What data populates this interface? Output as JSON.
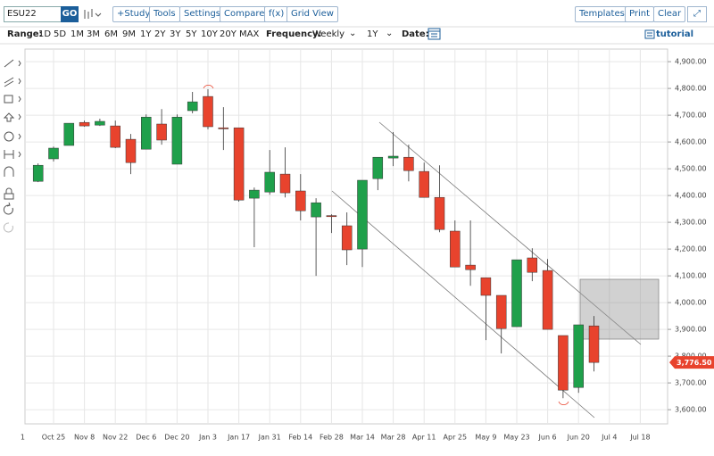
{
  "toolbar": {
    "symbol": "ESU22",
    "go": "GO",
    "buttons_left": [
      "+Study",
      "Tools",
      "Settings",
      "Compare",
      "f(x)",
      "Grid View"
    ],
    "buttons_right": [
      "Templates",
      "Print",
      "Clear"
    ]
  },
  "range_bar": {
    "label": "Range:",
    "ranges": [
      "1D",
      "5D",
      "1M",
      "3M",
      "6M",
      "9M",
      "1Y",
      "2Y",
      "3Y",
      "5Y",
      "10Y",
      "20Y",
      "MAX"
    ],
    "frequency_label": "Frequency:",
    "frequency": "Weekly",
    "period": "1Y",
    "date_label": "Date:",
    "tutorial": "tutorial"
  },
  "chart_data": {
    "type": "candlestick",
    "categories": [
      "1",
      null,
      "Oct 25",
      null,
      "Nov 8",
      null,
      "Nov 22",
      null,
      "Dec 6",
      null,
      "Dec 20",
      null,
      "Jan 3",
      null,
      "Jan 17",
      null,
      "Jan 31",
      null,
      "Feb 14",
      null,
      "Feb 28",
      null,
      "Mar 14",
      null,
      "Mar 28",
      null,
      "Apr 11",
      null,
      "Apr 25",
      null,
      "May 9",
      null,
      "May 23",
      null,
      "Jun 6",
      null,
      "Jun 20",
      null,
      "Jul 4",
      null,
      "Jul 18"
    ],
    "open": [
      null,
      4453,
      4537,
      4587,
      4673,
      4663,
      4660,
      4610,
      4573,
      4667,
      4517,
      4717,
      4770,
      4653,
      4653,
      4390,
      4413,
      4480,
      4417,
      4320,
      4325,
      4287,
      4200,
      4463,
      4540,
      4543,
      4490,
      4393,
      4267,
      4140,
      4093,
      4027,
      3910,
      4167,
      4120,
      3877,
      3683,
      3913,
      null,
      null,
      null
    ],
    "high": [
      null,
      4520,
      4583,
      4670,
      4680,
      4687,
      4680,
      4630,
      4703,
      4723,
      4703,
      4787,
      4797,
      4730,
      4653,
      4430,
      4570,
      4580,
      4480,
      4390,
      4330,
      4337,
      4457,
      4543,
      4637,
      4590,
      4523,
      4513,
      4307,
      4307,
      4093,
      4027,
      4160,
      4203,
      4163,
      3877,
      3917,
      3950,
      null,
      null,
      null
    ],
    "low": [
      null,
      4450,
      4527,
      4587,
      4657,
      4660,
      4577,
      4480,
      4573,
      4590,
      4517,
      4707,
      4647,
      4570,
      4377,
      4207,
      4403,
      4393,
      4307,
      4100,
      4260,
      4140,
      4133,
      4420,
      4510,
      4453,
      4393,
      4263,
      4133,
      4063,
      3860,
      3810,
      3910,
      4080,
      3900,
      3643,
      3663,
      3743,
      null,
      null,
      null
    ],
    "close": [
      null,
      4513,
      4577,
      4670,
      4660,
      4677,
      4580,
      4523,
      4693,
      4607,
      4693,
      4750,
      4657,
      4650,
      4383,
      4420,
      4487,
      4410,
      4343,
      4373,
      4323,
      4197,
      4457,
      4543,
      4547,
      4493,
      4393,
      4273,
      4133,
      4123,
      4027,
      3903,
      4160,
      4113,
      3900,
      3673,
      3917,
      3776.5,
      null,
      null,
      null
    ],
    "up_color": "#1fa04b",
    "down_color": "#e8432d",
    "last_price": {
      "value": 3776.5,
      "label": "3,776.50"
    },
    "ylim": [
      3547,
      4947
    ],
    "yticks": [
      {
        "value": 3600,
        "label": "3,600.00"
      },
      {
        "value": 3700,
        "label": "3,700.00"
      },
      {
        "value": 3800,
        "label": "3,800.00"
      },
      {
        "value": 3900,
        "label": "3,900.00"
      },
      {
        "value": 4000,
        "label": "4,000.00"
      },
      {
        "value": 4100,
        "label": "4,100.00"
      },
      {
        "value": 4200,
        "label": "4,200.00"
      },
      {
        "value": 4300,
        "label": "4,300.00"
      },
      {
        "value": 4400,
        "label": "4,400.00"
      },
      {
        "value": 4500,
        "label": "4,500.00"
      },
      {
        "value": 4600,
        "label": "4,600.00"
      },
      {
        "value": 4700,
        "label": "4,700.00"
      },
      {
        "value": 4800,
        "label": "4,800.00"
      },
      {
        "value": 4900,
        "label": "4,900.00"
      }
    ],
    "grid": true
  }
}
